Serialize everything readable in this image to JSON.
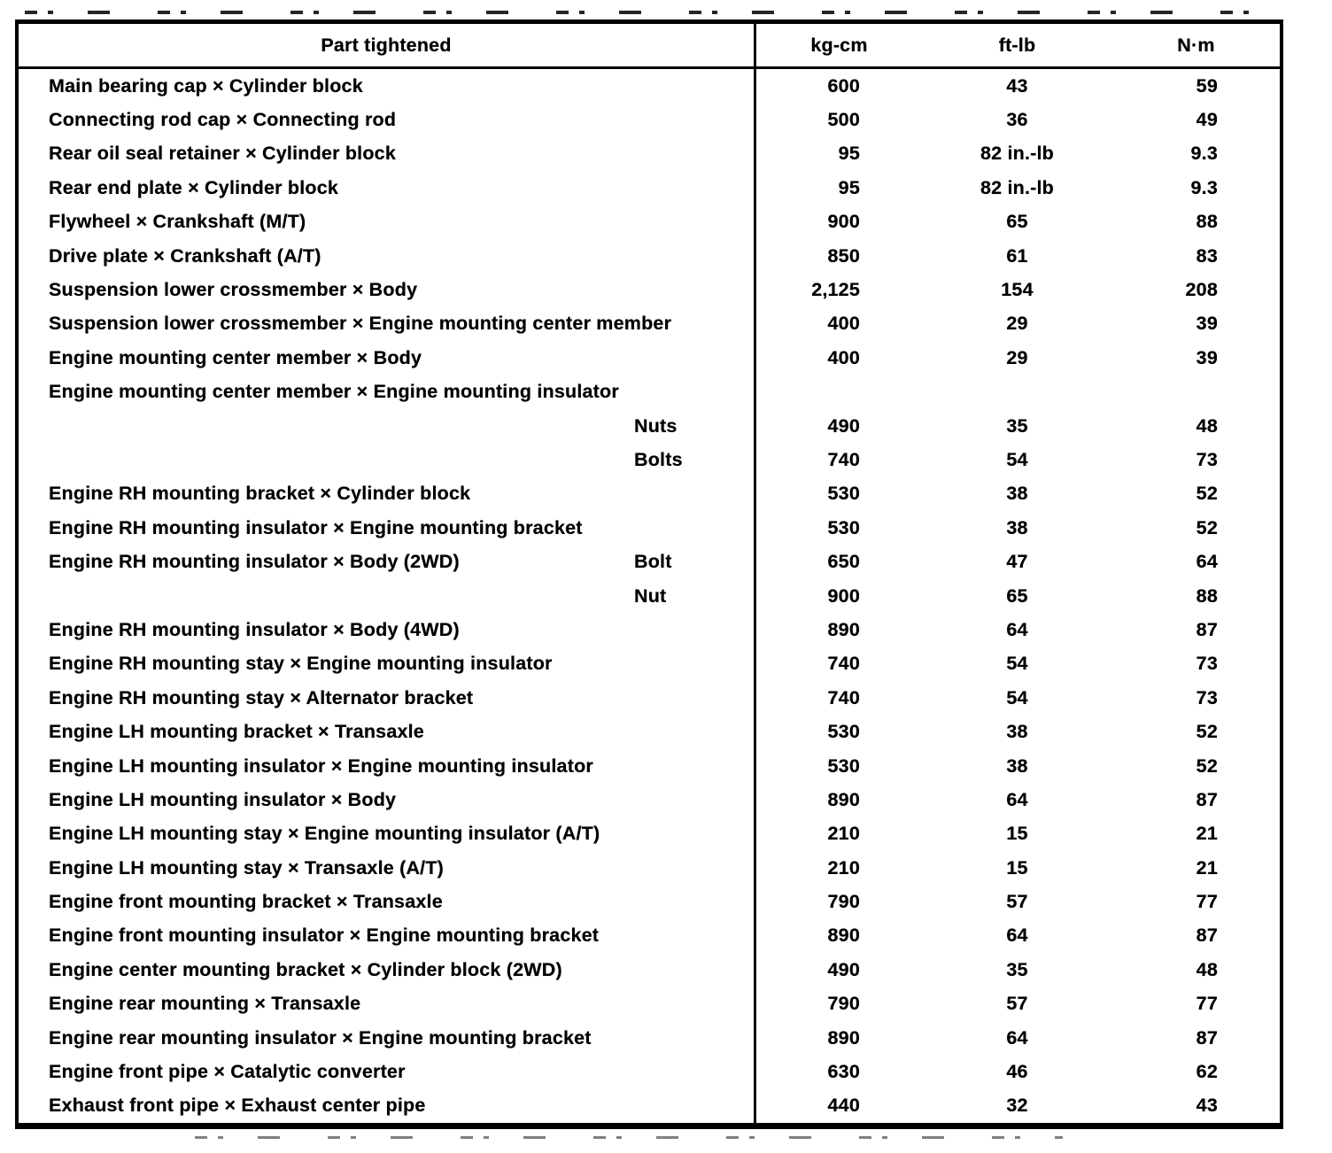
{
  "table": {
    "headers": {
      "part": "Part tightened",
      "kg_cm": "kg-cm",
      "ft_lb": "ft-lb",
      "n_m": "N·m"
    },
    "rows": [
      {
        "part": "Main bearing cap × Cylinder block",
        "sub": "",
        "kg_cm": "600",
        "ft_lb": "43",
        "n_m": "59"
      },
      {
        "part": "Connecting rod cap × Connecting rod",
        "sub": "",
        "kg_cm": "500",
        "ft_lb": "36",
        "n_m": "49"
      },
      {
        "part": "Rear oil seal retainer × Cylinder block",
        "sub": "",
        "kg_cm": "95",
        "ft_lb": "82 in.-lb",
        "n_m": "9.3"
      },
      {
        "part": "Rear end plate × Cylinder block",
        "sub": "",
        "kg_cm": "95",
        "ft_lb": "82 in.-lb",
        "n_m": "9.3"
      },
      {
        "part": "Flywheel × Crankshaft (M/T)",
        "sub": "",
        "kg_cm": "900",
        "ft_lb": "65",
        "n_m": "88"
      },
      {
        "part": "Drive plate × Crankshaft (A/T)",
        "sub": "",
        "kg_cm": "850",
        "ft_lb": "61",
        "n_m": "83"
      },
      {
        "part": "Suspension lower crossmember × Body",
        "sub": "",
        "kg_cm": "2,125",
        "ft_lb": "154",
        "n_m": "208"
      },
      {
        "part": "Suspension lower crossmember × Engine mounting center member",
        "sub": "",
        "kg_cm": "400",
        "ft_lb": "29",
        "n_m": "39"
      },
      {
        "part": "Engine mounting center member × Body",
        "sub": "",
        "kg_cm": "400",
        "ft_lb": "29",
        "n_m": "39"
      },
      {
        "part": "Engine mounting center member × Engine mounting insulator",
        "sub": "",
        "kg_cm": "",
        "ft_lb": "",
        "n_m": ""
      },
      {
        "part": "",
        "sub": "Nuts",
        "kg_cm": "490",
        "ft_lb": "35",
        "n_m": "48"
      },
      {
        "part": "",
        "sub": "Bolts",
        "kg_cm": "740",
        "ft_lb": "54",
        "n_m": "73"
      },
      {
        "part": "Engine RH mounting bracket × Cylinder block",
        "sub": "",
        "kg_cm": "530",
        "ft_lb": "38",
        "n_m": "52"
      },
      {
        "part": "Engine RH mounting insulator × Engine mounting bracket",
        "sub": "",
        "kg_cm": "530",
        "ft_lb": "38",
        "n_m": "52"
      },
      {
        "part": "Engine RH mounting insulator × Body (2WD)",
        "sub": "Bolt",
        "kg_cm": "650",
        "ft_lb": "47",
        "n_m": "64"
      },
      {
        "part": "",
        "sub": "Nut",
        "kg_cm": "900",
        "ft_lb": "65",
        "n_m": "88"
      },
      {
        "part": "Engine RH mounting insulator × Body (4WD)",
        "sub": "",
        "kg_cm": "890",
        "ft_lb": "64",
        "n_m": "87"
      },
      {
        "part": "Engine RH mounting stay × Engine mounting insulator",
        "sub": "",
        "kg_cm": "740",
        "ft_lb": "54",
        "n_m": "73"
      },
      {
        "part": "Engine RH mounting stay × Alternator bracket",
        "sub": "",
        "kg_cm": "740",
        "ft_lb": "54",
        "n_m": "73"
      },
      {
        "part": "Engine LH mounting bracket × Transaxle",
        "sub": "",
        "kg_cm": "530",
        "ft_lb": "38",
        "n_m": "52"
      },
      {
        "part": "Engine LH mounting insulator × Engine mounting insulator",
        "sub": "",
        "kg_cm": "530",
        "ft_lb": "38",
        "n_m": "52"
      },
      {
        "part": "Engine LH mounting insulator × Body",
        "sub": "",
        "kg_cm": "890",
        "ft_lb": "64",
        "n_m": "87"
      },
      {
        "part": "Engine LH mounting stay × Engine mounting insulator (A/T)",
        "sub": "",
        "kg_cm": "210",
        "ft_lb": "15",
        "n_m": "21"
      },
      {
        "part": "Engine LH mounting stay × Transaxle (A/T)",
        "sub": "",
        "kg_cm": "210",
        "ft_lb": "15",
        "n_m": "21"
      },
      {
        "part": "Engine front mounting bracket × Transaxle",
        "sub": "",
        "kg_cm": "790",
        "ft_lb": "57",
        "n_m": "77"
      },
      {
        "part": "Engine front mounting insulator × Engine mounting bracket",
        "sub": "",
        "kg_cm": "890",
        "ft_lb": "64",
        "n_m": "87"
      },
      {
        "part": "Engine center mounting bracket × Cylinder block (2WD)",
        "sub": "",
        "kg_cm": "490",
        "ft_lb": "35",
        "n_m": "48"
      },
      {
        "part": "Engine rear mounting × Transaxle",
        "sub": "",
        "kg_cm": "790",
        "ft_lb": "57",
        "n_m": "77"
      },
      {
        "part": "Engine rear mounting insulator × Engine mounting bracket",
        "sub": "",
        "kg_cm": "890",
        "ft_lb": "64",
        "n_m": "87"
      },
      {
        "part": "Engine front pipe × Catalytic converter",
        "sub": "",
        "kg_cm": "630",
        "ft_lb": "46",
        "n_m": "62"
      },
      {
        "part": "Exhaust front pipe × Exhaust center pipe",
        "sub": "",
        "kg_cm": "440",
        "ft_lb": "32",
        "n_m": "43"
      }
    ]
  }
}
